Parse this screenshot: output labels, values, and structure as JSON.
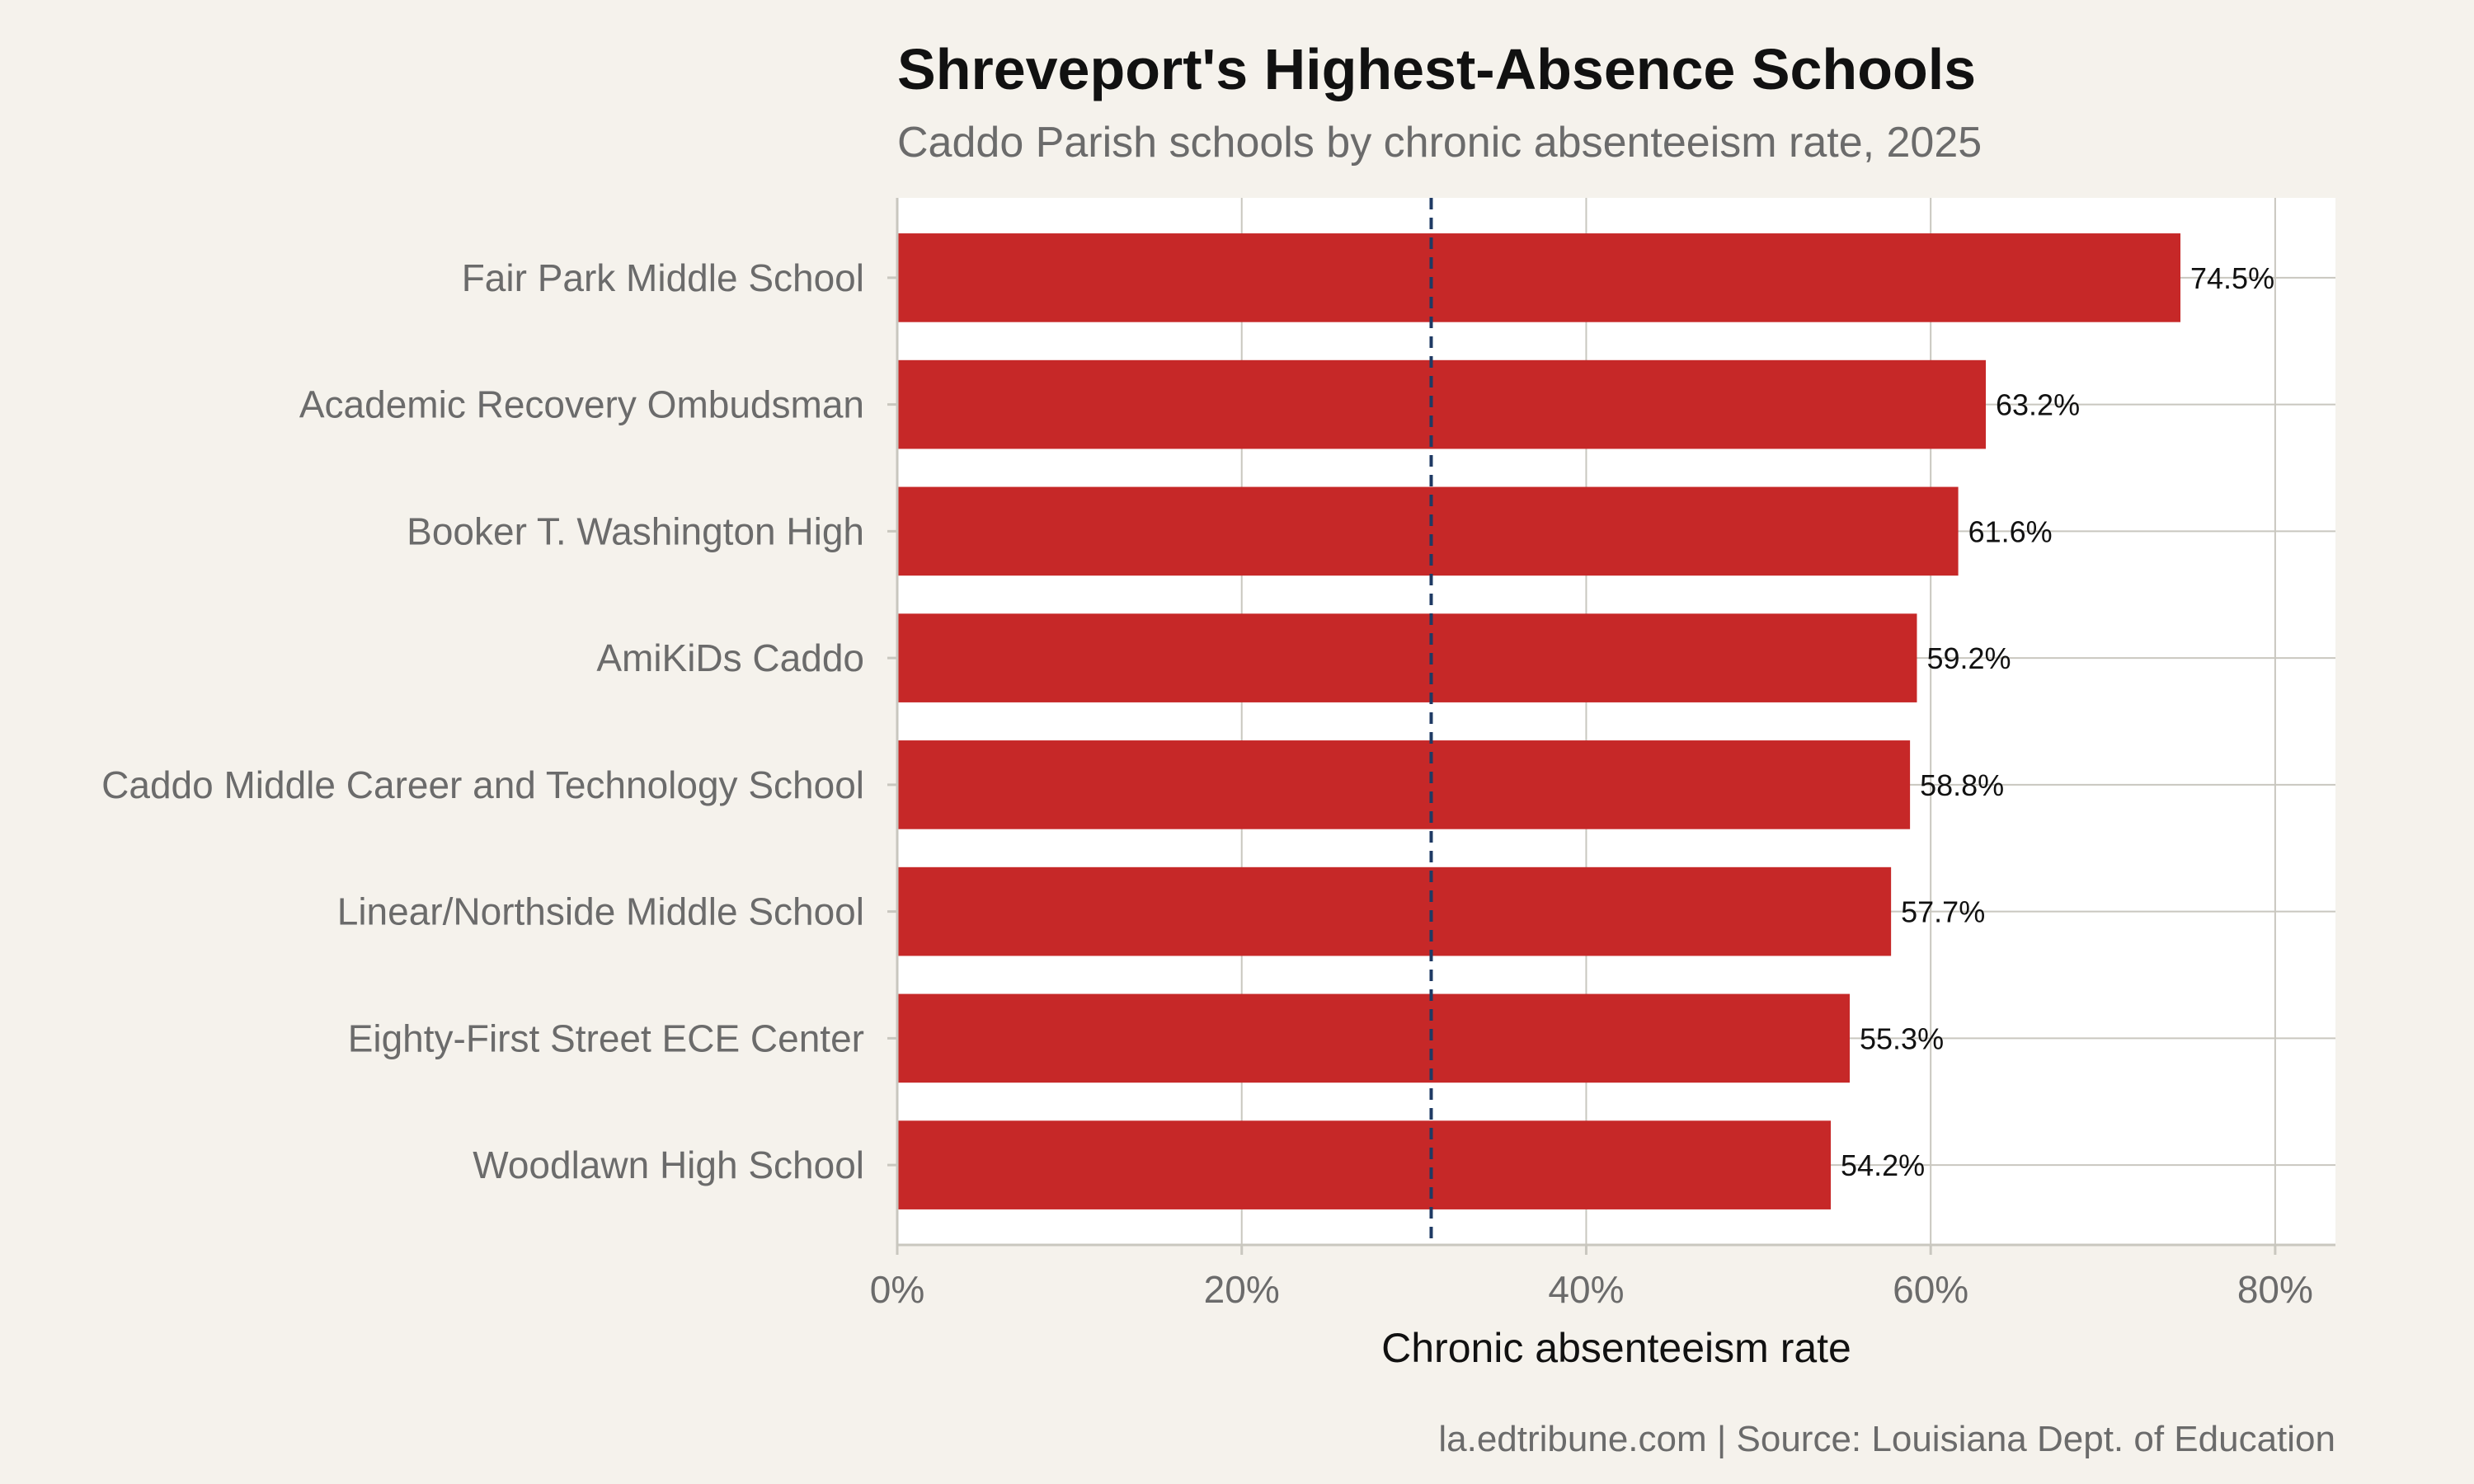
{
  "chart_data": {
    "type": "bar",
    "orientation": "horizontal",
    "title": "Shreveport's Highest-Absence Schools",
    "subtitle": "Caddo Parish schools by chronic absenteeism rate, 2025",
    "xlabel": "Chronic absenteeism rate",
    "ylabel": "",
    "caption": "la.edtribune.com | Source: Louisiana Dept. of Education",
    "categories": [
      "Fair Park Middle School",
      "Academic Recovery Ombudsman",
      "Booker T. Washington High",
      "AmiKiDs Caddo",
      "Caddo Middle Career and Technology School",
      "Linear/Northside Middle School",
      "Eighty-First Street ECE Center",
      "Woodlawn High School"
    ],
    "values": [
      74.5,
      63.2,
      61.6,
      59.2,
      58.8,
      57.7,
      55.3,
      54.2
    ],
    "value_labels": [
      "74.5%",
      "63.2%",
      "61.6%",
      "59.2%",
      "58.8%",
      "57.7%",
      "55.3%",
      "54.2%"
    ],
    "xlim": [
      0,
      83.5
    ],
    "xticks": [
      0,
      20,
      40,
      60,
      80
    ],
    "xtick_labels": [
      "0%",
      "20%",
      "40%",
      "60%",
      "80%"
    ],
    "reference_line": {
      "value": 31,
      "style": "dashed"
    },
    "grid": true,
    "legend": "none",
    "colors": {
      "bar": "#c62828",
      "reference_line": "#1f3a64",
      "panel": "#ffffff",
      "background": "#f5f2ec",
      "grid": "#c9c7bf"
    }
  }
}
